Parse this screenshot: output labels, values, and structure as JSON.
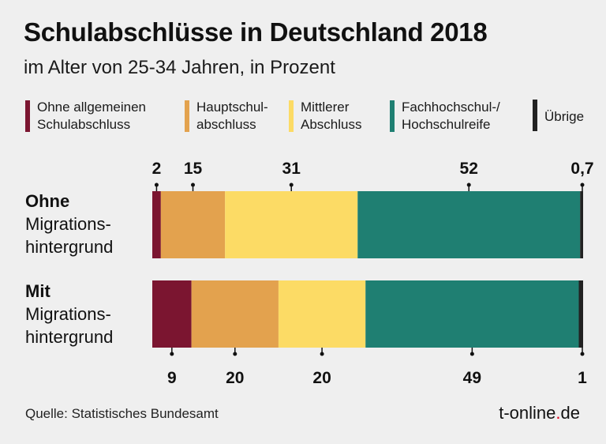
{
  "title": "Schulabschlüsse in Deutschland 2018",
  "subtitle": "im Alter von 25-34 Jahren, in Prozent",
  "source": "Quelle: Statistisches Bundesamt",
  "brand": {
    "main": "t-online",
    "dot": ".",
    "tld": "de"
  },
  "legend": [
    {
      "label": "Ohne allgemeinen\nSchulabschluss",
      "color": "#7b1530"
    },
    {
      "label": "Hauptschul-\nabschluss",
      "color": "#e3a24e"
    },
    {
      "label": "Mittlerer\nAbschluss",
      "color": "#fcdb65"
    },
    {
      "label": "Fachhochschul-/\nHochschulreife",
      "color": "#1f7f72"
    },
    {
      "label": "Übrige",
      "color": "#222222"
    }
  ],
  "rows": [
    {
      "bold": "Ohne",
      "rest": "Migrations-\nhintergrund"
    },
    {
      "bold": "Mit",
      "rest": "Migrations-\nhintergrund"
    }
  ],
  "chart_data": {
    "type": "bar",
    "orientation": "horizontal",
    "stacked": true,
    "unit": "Prozent",
    "categories": [
      "Ohne Migrationshintergrund",
      "Mit Migrationshintergrund"
    ],
    "series": [
      {
        "name": "Ohne allgemeinen Schulabschluss",
        "values": [
          2,
          9
        ],
        "labels": [
          "2",
          "9"
        ],
        "color": "#7b1530"
      },
      {
        "name": "Hauptschulabschluss",
        "values": [
          15,
          20
        ],
        "labels": [
          "15",
          "20"
        ],
        "color": "#e3a24e"
      },
      {
        "name": "Mittlerer Abschluss",
        "values": [
          31,
          20
        ],
        "labels": [
          "31",
          "20"
        ],
        "color": "#fcdb65"
      },
      {
        "name": "Fachhochschul-/Hochschulreife",
        "values": [
          52,
          49
        ],
        "labels": [
          "52",
          "49"
        ],
        "color": "#1f7f72"
      },
      {
        "name": "Übrige",
        "values": [
          0.7,
          1
        ],
        "labels": [
          "0,7",
          "1"
        ],
        "color": "#222222"
      }
    ],
    "label_positions": [
      "above",
      "below"
    ]
  }
}
